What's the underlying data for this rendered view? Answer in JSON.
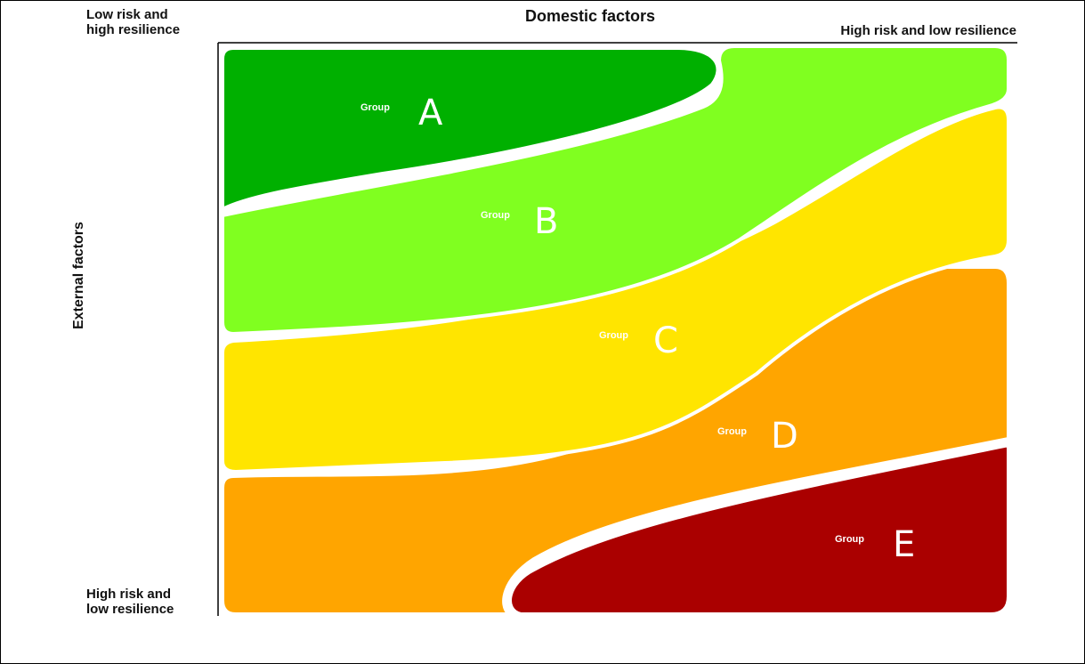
{
  "title": "Domestic factors",
  "y_label": "External factors",
  "corner_top_left": "Low risk and\nhigh resilience",
  "corner_top_right": "High risk and low resilience",
  "corner_bottom_left": "High risk and\nlow resilience",
  "groups": [
    {
      "word": "Group",
      "letter": "A",
      "color": "#00b000"
    },
    {
      "word": "Group",
      "letter": "B",
      "color": "#80ff20"
    },
    {
      "word": "Group",
      "letter": "C",
      "color": "#ffe500"
    },
    {
      "word": "Group",
      "letter": "D",
      "color": "#ffa500"
    },
    {
      "word": "Group",
      "letter": "E",
      "color": "#aa0000"
    }
  ]
}
